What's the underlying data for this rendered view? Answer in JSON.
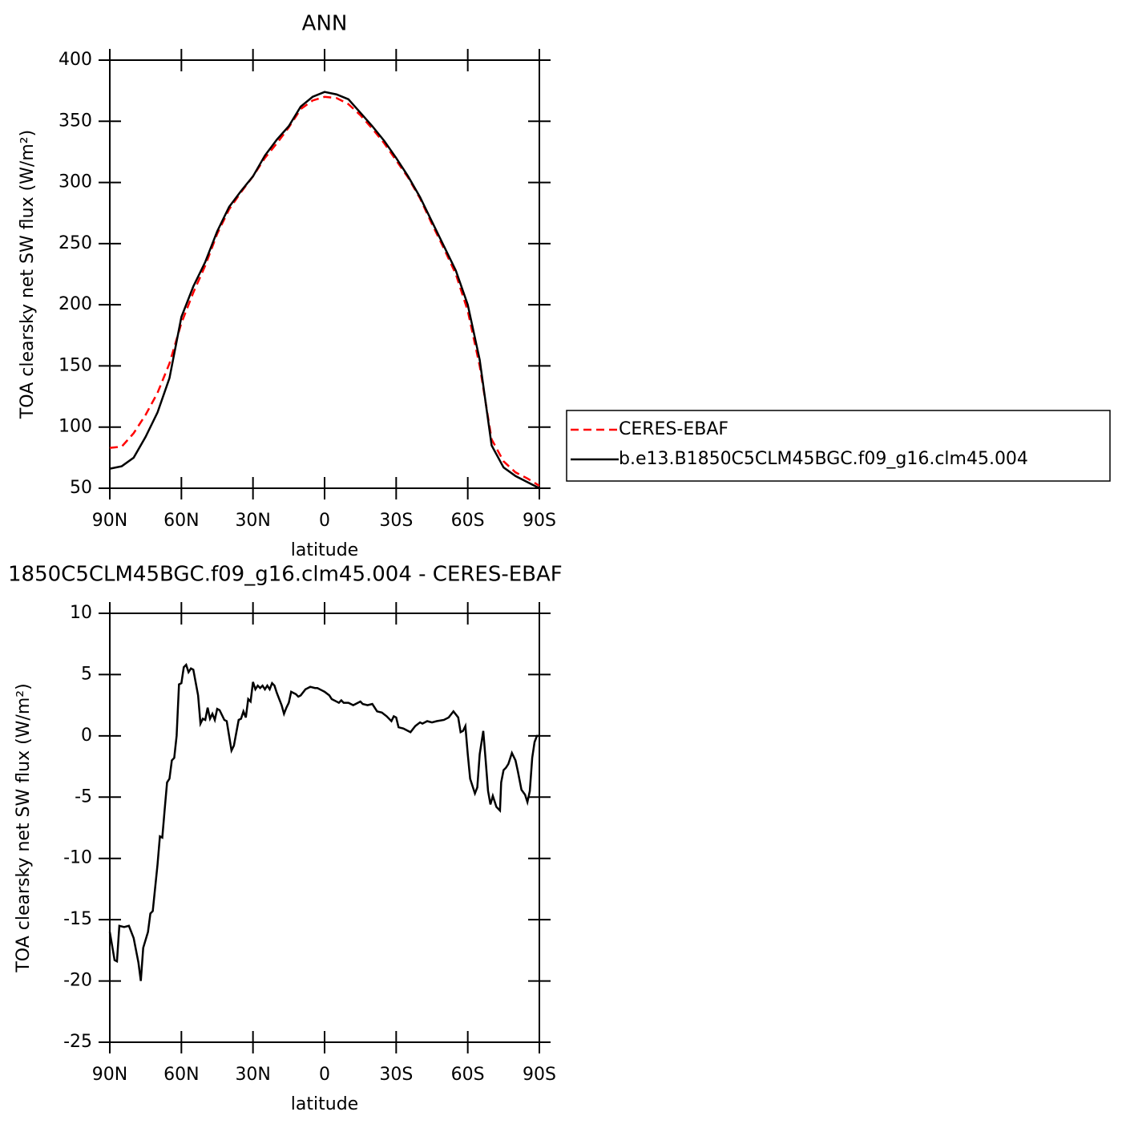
{
  "chart_data": [
    {
      "type": "line",
      "title": "ANN",
      "xlabel": "latitude",
      "ylabel": "TOA clearsky net SW flux (W/m²)",
      "x": [
        90,
        85,
        80,
        75,
        70,
        65,
        60,
        55,
        50,
        45,
        40,
        35,
        30,
        25,
        20,
        15,
        10,
        5,
        0,
        -5,
        -10,
        -15,
        -20,
        -25,
        -30,
        -35,
        -40,
        -45,
        -50,
        -55,
        -60,
        -65,
        -70,
        -75,
        -80,
        -85,
        -90
      ],
      "series": [
        {
          "name": "CERES-EBAF",
          "color": "#ff0000",
          "linestyle": "dashed",
          "values": [
            83,
            84,
            95,
            110,
            128,
            152,
            185,
            210,
            232,
            258,
            278,
            292,
            305,
            320,
            332,
            345,
            360,
            367,
            370,
            369,
            364,
            355,
            344,
            332,
            318,
            304,
            287,
            266,
            246,
            225,
            195,
            150,
            90,
            72,
            63,
            58,
            52
          ]
        },
        {
          "name": "b.e13.B1850C5CLM45BGC.f09_g16.clm45.004",
          "color": "#000000",
          "linestyle": "solid",
          "values": [
            66,
            68,
            75,
            92,
            112,
            140,
            190,
            215,
            235,
            260,
            280,
            293,
            305,
            322,
            335,
            346,
            362,
            370,
            374,
            372,
            368,
            357,
            346,
            334,
            320,
            305,
            288,
            268,
            248,
            228,
            200,
            155,
            85,
            67,
            60,
            55,
            50
          ]
        }
      ],
      "xlim": [
        90,
        -90
      ],
      "xticks": [
        {
          "value": 90,
          "label": "90N"
        },
        {
          "value": 60,
          "label": "60N"
        },
        {
          "value": 30,
          "label": "30N"
        },
        0,
        {
          "value": -30,
          "label": "30S"
        },
        {
          "value": -60,
          "label": "60S"
        },
        {
          "value": -90,
          "label": "90S"
        }
      ],
      "ylim": [
        50,
        400
      ],
      "yticks": [
        50,
        100,
        150,
        200,
        250,
        300,
        350,
        400
      ],
      "legend": "right"
    },
    {
      "type": "line",
      "title": "1850C5CLM45BGC.f09_g16.clm45.004 - CERES-EBAF",
      "xlabel": "latitude",
      "ylabel": "TOA clearsky net SW flux (W/m²)",
      "x": [
        90,
        88,
        87,
        86,
        84,
        82,
        80,
        78,
        77,
        76,
        74,
        73,
        72,
        70,
        69,
        68,
        67,
        66,
        65,
        64,
        63,
        62,
        61,
        60,
        59,
        58,
        57,
        56,
        55,
        53,
        52,
        51,
        50,
        49,
        48,
        47,
        46,
        45,
        44,
        42,
        41,
        39,
        38,
        36,
        35,
        34,
        33,
        32,
        31,
        30,
        29,
        28,
        27,
        26,
        25,
        24,
        23,
        22,
        21,
        20,
        18,
        17,
        16,
        15,
        14,
        12,
        11,
        10,
        8,
        6,
        4,
        3,
        1,
        0,
        -2,
        -3,
        -5,
        -6,
        -7,
        -8,
        -10,
        -12,
        -13,
        -15,
        -16,
        -18,
        -20,
        -22,
        -24,
        -26,
        -28,
        -29,
        -30,
        -31,
        -33,
        -35,
        -36,
        -38,
        -40,
        -41,
        -43,
        -45,
        -47,
        -50,
        -52,
        -54,
        -56,
        -57,
        -58,
        -59,
        -60,
        -61,
        -63,
        -64,
        -65,
        -66.5,
        -67.5,
        -68.5,
        -69.5,
        -70.5,
        -72,
        -73.5,
        -74,
        -75,
        -76,
        -77,
        -78.5,
        -80,
        -81,
        -82.5,
        -84,
        -85,
        -86,
        -87,
        -88,
        -89,
        -90
      ],
      "series": [
        {
          "name": null,
          "color": "#000000",
          "linestyle": "solid",
          "values": [
            -16,
            -18.3,
            -18.4,
            -15.5,
            -15.6,
            -15.5,
            -16.5,
            -18.5,
            -20,
            -17.3,
            -16,
            -14.5,
            -14.3,
            -10.5,
            -8.2,
            -8.3,
            -6,
            -3.8,
            -3.5,
            -2,
            -1.8,
            0,
            4.2,
            4.3,
            5.6,
            5.8,
            5.2,
            5.5,
            5.4,
            3.3,
            1,
            1.4,
            1.3,
            2.3,
            1.4,
            1.8,
            1.3,
            2.2,
            2.1,
            1.3,
            1.2,
            -1.2,
            -0.8,
            1.3,
            1.4,
            2,
            1.5,
            3,
            2.8,
            4.4,
            3.8,
            4.1,
            3.9,
            4.1,
            3.8,
            4.1,
            3.8,
            4.3,
            4.1,
            3.5,
            2.5,
            1.8,
            2.3,
            2.7,
            3.6,
            3.4,
            3.2,
            3.3,
            3.8,
            4,
            3.9,
            3.9,
            3.7,
            3.6,
            3.3,
            3,
            2.8,
            2.7,
            2.9,
            2.7,
            2.7,
            2.5,
            2.6,
            2.8,
            2.6,
            2.5,
            2.6,
            2,
            1.9,
            1.6,
            1.2,
            1.6,
            1.5,
            0.7,
            0.6,
            0.4,
            0.3,
            0.8,
            1.1,
            1,
            1.2,
            1.1,
            1.2,
            1.3,
            1.5,
            2,
            1.5,
            0.3,
            0.4,
            0.8,
            -1.5,
            -3.5,
            -4.7,
            -4.2,
            -1.5,
            0.4,
            -2,
            -4.5,
            -5.6,
            -4.9,
            -5.8,
            -6.1,
            -3.8,
            -2.8,
            -2.6,
            -2.3,
            -1.4,
            -2,
            -2.9,
            -4.4,
            -4.8,
            -5.4,
            -4.5,
            -1.8,
            -0.5,
            0,
            0
          ]
        }
      ],
      "xlim": [
        90,
        -90
      ],
      "xticks": [
        {
          "value": 90,
          "label": "90N"
        },
        {
          "value": 60,
          "label": "60N"
        },
        {
          "value": 30,
          "label": "30N"
        },
        0,
        {
          "value": -30,
          "label": "30S"
        },
        {
          "value": -60,
          "label": "60S"
        },
        {
          "value": -90,
          "label": "90S"
        }
      ],
      "ylim": [
        -25,
        10
      ],
      "yticks": [
        -25,
        -20,
        -15,
        -10,
        -5,
        0,
        5,
        10
      ]
    }
  ]
}
